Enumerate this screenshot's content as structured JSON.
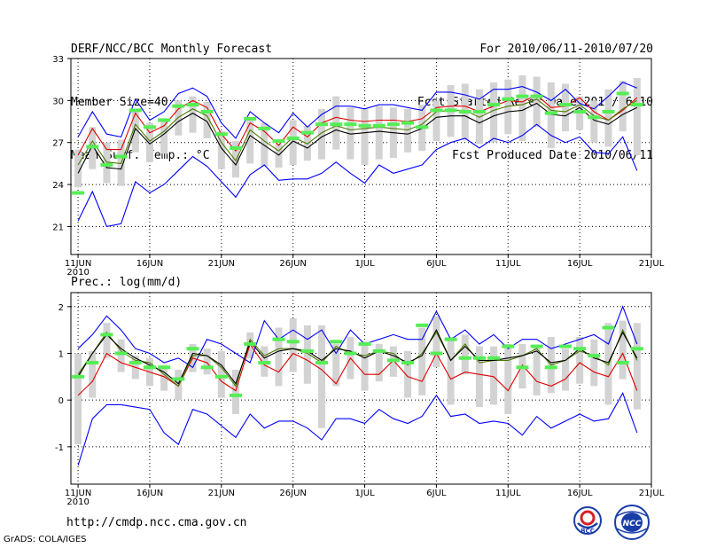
{
  "header": {
    "line1_left": "DERF/NCC/BCC Monthly Forecast",
    "line2_left": "Member Size=40",
    "line3_left": "Mean Surf. Temp.: °C",
    "line1_right": "For 2010/06/11-2010/07/20",
    "line2_right": "Fcst Started Refer Date 2010/06/10",
    "line3_right": "Fcst Produced Date 2010/06/11"
  },
  "footer": {
    "url": "http://cmdp.ncc.cma.gov.cn",
    "credit": "GrADS: COLA/IGES",
    "logo_left": "BCC",
    "logo_right": "NCC"
  },
  "colors": {
    "ensemble_max": "#0000ff",
    "ensemble_min": "#0000ff",
    "upper_line": "#e00000",
    "mean_line": "#000000",
    "median_line": "#4a7a00",
    "box": "#d3d3d3",
    "observation_marker": "#55ee55"
  },
  "chart_data": [
    {
      "type": "box-line",
      "title": "Mean Surf. Temp.: °C",
      "ylim": [
        19,
        33
      ],
      "yticks": [
        21,
        24,
        27,
        30,
        33
      ],
      "xlabels": [
        "11JUN",
        "16JUN",
        "21JUN",
        "26JUN",
        "1JUL",
        "6JUL",
        "11JUL",
        "16JUL",
        "21JUL"
      ],
      "xlabel_year": "2010",
      "days": 40,
      "series": [
        {
          "name": "ensemble max",
          "role": "max",
          "values": [
            27.4,
            29.2,
            27.6,
            27.4,
            30.1,
            28.6,
            29.2,
            30.5,
            30.9,
            30.3,
            28.4,
            27.3,
            29.2,
            28.4,
            27.7,
            29.1,
            28.1,
            29.0,
            29.6,
            29.6,
            29.4,
            29.7,
            29.7,
            29.5,
            29.3,
            30.6,
            30.6,
            30.4,
            30.1,
            30.8,
            30.8,
            31.0,
            30.6,
            30.0,
            30.8,
            29.8,
            29.4,
            30.3,
            31.3,
            30.9
          ]
        },
        {
          "name": "ensemble min",
          "role": "min",
          "values": [
            21.4,
            23.5,
            21.0,
            21.2,
            24.2,
            23.4,
            24.0,
            25.0,
            26.0,
            25.3,
            24.2,
            23.1,
            24.7,
            25.4,
            24.3,
            24.4,
            24.4,
            24.8,
            25.6,
            24.8,
            24.1,
            25.4,
            24.8,
            25.1,
            25.4,
            26.5,
            27.0,
            27.3,
            26.6,
            27.3,
            27.0,
            27.5,
            28.3,
            27.5,
            27.0,
            27.4,
            26.3,
            26.2,
            27.4,
            25.0
          ]
        },
        {
          "name": "upper",
          "role": "upper",
          "values": [
            26.1,
            28.0,
            26.5,
            26.5,
            29.1,
            27.7,
            28.2,
            29.4,
            30.0,
            29.5,
            27.6,
            26.4,
            28.4,
            27.8,
            26.8,
            28.1,
            27.4,
            28.4,
            28.8,
            28.6,
            28.5,
            28.6,
            28.6,
            28.5,
            28.7,
            29.5,
            29.6,
            29.6,
            29.2,
            29.6,
            30.0,
            29.9,
            30.4,
            29.5,
            29.6,
            30.2,
            29.2,
            28.6,
            29.3,
            30.2
          ]
        },
        {
          "name": "mean",
          "role": "mean",
          "values": [
            24.8,
            26.8,
            25.2,
            25.1,
            28.0,
            26.9,
            27.6,
            28.5,
            29.1,
            28.5,
            26.6,
            25.4,
            27.5,
            26.8,
            26.1,
            27.1,
            26.6,
            27.4,
            27.9,
            27.6,
            27.7,
            27.8,
            27.7,
            27.6,
            28.0,
            28.8,
            28.9,
            28.9,
            28.4,
            28.9,
            29.2,
            29.3,
            29.8,
            29.0,
            28.9,
            29.5,
            28.6,
            28.3,
            29.0,
            29.5
          ]
        },
        {
          "name": "median",
          "role": "median",
          "values": [
            25.4,
            27.1,
            25.6,
            25.5,
            28.3,
            27.1,
            27.8,
            28.8,
            29.4,
            28.9,
            27.0,
            25.7,
            27.9,
            27.1,
            26.4,
            27.4,
            26.9,
            27.7,
            28.2,
            27.9,
            28.0,
            28.1,
            28.0,
            27.9,
            28.3,
            29.2,
            29.3,
            29.3,
            28.8,
            29.3,
            29.6,
            29.7,
            30.1,
            29.3,
            29.2,
            29.7,
            28.9,
            28.6,
            29.4,
            30.0
          ]
        },
        {
          "name": "box low",
          "role": "box_low",
          "values": [
            23.8,
            25.1,
            24.1,
            23.9,
            26.3,
            25.6,
            26.2,
            27.5,
            27.7,
            27.3,
            25.1,
            24.5,
            25.5,
            25.3,
            25.2,
            25.4,
            25.7,
            25.8,
            26.5,
            25.8,
            25.4,
            25.8,
            25.9,
            26.3,
            26.4,
            27.1,
            27.4,
            27.2,
            26.9,
            27.0,
            27.6,
            27.1,
            28.1,
            26.6,
            27.8,
            27.9,
            27.0,
            26.7,
            27.8,
            26.1
          ]
        },
        {
          "name": "box high",
          "role": "box_high",
          "values": [
            26.5,
            28.1,
            27.0,
            27.2,
            29.4,
            28.4,
            28.7,
            30.0,
            30.3,
            29.9,
            27.8,
            27.1,
            28.8,
            28.4,
            26.9,
            28.6,
            28.2,
            29.4,
            30.3,
            29.5,
            29.4,
            29.6,
            29.5,
            29.4,
            29.7,
            30.0,
            31.1,
            31.2,
            30.8,
            31.3,
            31.5,
            31.8,
            31.7,
            31.3,
            31.2,
            30.3,
            30.0,
            30.8,
            31.4,
            31.6
          ]
        },
        {
          "name": "observed",
          "role": "obs",
          "values": [
            23.4,
            26.7,
            25.4,
            26.0,
            29.3,
            28.1,
            28.6,
            29.6,
            29.7,
            29.2,
            27.6,
            26.6,
            28.7,
            28.0,
            27.1,
            27.3,
            27.7,
            28.3,
            28.3,
            28.3,
            28.2,
            28.2,
            28.3,
            28.4,
            28.1,
            29.3,
            29.3,
            29.2,
            29.2,
            29.7,
            30.1,
            30.3,
            30.3,
            29.1,
            29.7,
            29.2,
            28.8,
            29.2,
            30.5,
            29.7
          ]
        }
      ]
    },
    {
      "type": "box-line",
      "title": "Prec.: log(mm/d)",
      "ylim": [
        -1.8,
        2.3
      ],
      "yticks": [
        -1,
        0,
        1,
        2
      ],
      "xlabels": [
        "11JUN",
        "16JUN",
        "21JUN",
        "26JUN",
        "1JUL",
        "6JUL",
        "11JUL",
        "16JUL",
        "21JUL"
      ],
      "xlabel_year": "2010",
      "days": 40,
      "series": [
        {
          "name": "ensemble max",
          "role": "max",
          "values": [
            1.1,
            1.4,
            1.8,
            1.5,
            1.1,
            1.0,
            0.8,
            0.9,
            0.7,
            1.3,
            1.2,
            1.0,
            0.8,
            1.7,
            1.3,
            1.5,
            1.3,
            1.5,
            1.0,
            1.5,
            1.2,
            1.3,
            1.4,
            1.3,
            1.3,
            1.9,
            1.3,
            1.5,
            1.2,
            1.4,
            1.1,
            1.3,
            1.3,
            1.1,
            1.2,
            1.3,
            1.4,
            1.2,
            2.0,
            1.2
          ]
        },
        {
          "name": "ensemble min",
          "role": "min",
          "values": [
            -1.4,
            -0.4,
            -0.1,
            -0.1,
            -0.15,
            -0.2,
            -0.7,
            -0.95,
            -0.2,
            -0.3,
            -0.55,
            -0.8,
            -0.3,
            -0.6,
            -0.45,
            -0.45,
            -0.6,
            -0.85,
            -0.4,
            -0.4,
            -0.5,
            -0.2,
            -0.4,
            -0.5,
            -0.35,
            0.1,
            -0.35,
            -0.3,
            -0.5,
            -0.45,
            -0.5,
            -0.75,
            -0.35,
            -0.6,
            -0.45,
            -0.3,
            -0.45,
            -0.4,
            0.15,
            -0.7
          ]
        },
        {
          "name": "upper",
          "role": "upper",
          "values": [
            0.1,
            0.4,
            1.0,
            0.8,
            0.7,
            0.6,
            0.5,
            0.3,
            0.9,
            0.8,
            0.4,
            0.2,
            1.2,
            0.75,
            0.6,
            1.0,
            0.85,
            0.65,
            0.35,
            0.9,
            0.55,
            0.55,
            0.85,
            0.5,
            0.4,
            1.0,
            0.45,
            0.6,
            0.55,
            0.5,
            0.2,
            0.75,
            0.4,
            0.3,
            0.45,
            0.8,
            0.6,
            0.5,
            1.0,
            0.2
          ]
        },
        {
          "name": "mean",
          "role": "mean",
          "values": [
            0.5,
            1.0,
            1.4,
            1.1,
            0.9,
            0.75,
            0.6,
            0.35,
            1.0,
            0.95,
            0.75,
            0.35,
            1.25,
            0.9,
            1.05,
            1.1,
            1.05,
            0.85,
            1.1,
            1.05,
            0.9,
            1.05,
            0.95,
            0.8,
            0.95,
            1.5,
            0.85,
            1.15,
            0.85,
            0.85,
            0.9,
            0.95,
            1.05,
            0.8,
            0.85,
            1.1,
            0.9,
            0.8,
            1.45,
            0.9
          ]
        },
        {
          "name": "median",
          "role": "median",
          "values": [
            0.55,
            1.0,
            1.45,
            1.05,
            0.85,
            0.8,
            0.55,
            0.3,
            0.95,
            0.95,
            0.7,
            0.3,
            1.3,
            0.95,
            1.1,
            1.1,
            1.0,
            0.8,
            1.15,
            1.0,
            0.95,
            1.05,
            1.0,
            0.75,
            1.0,
            1.45,
            0.85,
            1.2,
            0.8,
            0.85,
            0.85,
            0.95,
            1.1,
            0.75,
            0.85,
            1.05,
            0.95,
            0.75,
            1.5,
            0.85
          ]
        },
        {
          "name": "box low",
          "role": "box_low",
          "values": [
            -0.95,
            0.05,
            0.9,
            0.6,
            0.45,
            0.3,
            0.2,
            0.0,
            0.6,
            0.55,
            0.05,
            -0.3,
            0.9,
            0.5,
            0.3,
            0.6,
            0.35,
            -0.6,
            0.3,
            0.45,
            0.2,
            0.4,
            0.5,
            0.05,
            0.1,
            0.7,
            -0.1,
            0.55,
            -0.15,
            -0.1,
            -0.3,
            0.25,
            0.1,
            0.15,
            0.2,
            0.35,
            0.3,
            -0.1,
            0.45,
            -0.2
          ]
        },
        {
          "name": "box high",
          "role": "box_high",
          "values": [
            1.0,
            1.05,
            1.65,
            1.3,
            0.95,
            0.9,
            0.75,
            0.65,
            1.2,
            1.1,
            1.05,
            0.65,
            1.45,
            1.15,
            1.55,
            1.75,
            1.6,
            1.6,
            1.2,
            1.35,
            1.25,
            1.2,
            1.15,
            1.05,
            1.55,
            1.8,
            1.35,
            1.4,
            1.15,
            1.15,
            1.2,
            1.2,
            1.15,
            1.35,
            1.1,
            1.35,
            1.3,
            1.65,
            1.7,
            1.65
          ]
        },
        {
          "name": "observed",
          "role": "obs",
          "values": [
            0.5,
            0.8,
            1.4,
            1.0,
            0.8,
            0.7,
            0.7,
            0.45,
            1.1,
            0.7,
            0.5,
            0.1,
            1.2,
            0.8,
            1.3,
            1.25,
            1.05,
            0.8,
            1.25,
            1.0,
            1.2,
            1.05,
            0.85,
            0.8,
            1.6,
            1.0,
            1.3,
            0.9,
            0.9,
            0.9,
            1.15,
            0.7,
            1.15,
            0.7,
            1.15,
            1.1,
            0.95,
            1.55,
            0.8,
            1.1
          ]
        }
      ]
    }
  ]
}
